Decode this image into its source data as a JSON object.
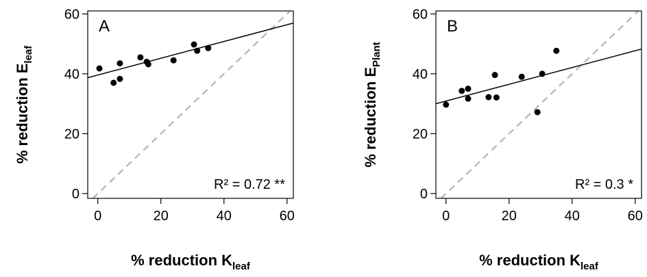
{
  "chart_data": [
    {
      "type": "scatter",
      "annotation": "A",
      "stat_label": "R² = 0.72 **",
      "xlabel": {
        "text": "% reduction K",
        "sub": "leaf"
      },
      "ylabel": {
        "text": "% reduction E",
        "sub": "leaf"
      },
      "x": [
        0.5,
        5,
        7,
        7,
        13.5,
        15.5,
        16,
        24,
        30.5,
        31.5,
        35
      ],
      "series": [
        {
          "color": "#000000",
          "values": [
            41.8,
            37,
            43.5,
            38.3,
            45.5,
            44,
            43.2,
            44.5,
            49.8,
            47.7,
            48.6
          ]
        }
      ],
      "fit": {
        "intercept": 39.6,
        "slope": 0.28,
        "color": "#000000"
      },
      "identity_line": true,
      "xlim": [
        -3.2,
        62
      ],
      "ylim": [
        -1.6,
        61
      ],
      "xticks": [
        0,
        20,
        40,
        60
      ],
      "yticks": [
        0,
        20,
        40,
        60
      ]
    },
    {
      "type": "scatter",
      "annotation": "B",
      "stat_label": "R² = 0.3 *",
      "xlabel": {
        "text": "% reduction K",
        "sub": "leaf"
      },
      "ylabel": {
        "text": "% reduction E",
        "sub": "Plant"
      },
      "x": [
        0,
        5,
        7,
        7,
        13.5,
        15.5,
        16,
        24,
        29,
        30.5,
        35
      ],
      "series": [
        {
          "color": "#000000",
          "values": [
            29.7,
            34.3,
            35,
            31.7,
            32.2,
            39.6,
            32.1,
            39,
            27.2,
            40,
            47.7
          ]
        }
      ],
      "fit": {
        "intercept": 30.9,
        "slope": 0.28,
        "color": "#000000"
      },
      "identity_line": true,
      "xlim": [
        -3.2,
        62
      ],
      "ylim": [
        -1.6,
        61
      ],
      "xticks": [
        0,
        20,
        40,
        60
      ],
      "yticks": [
        0,
        20,
        40,
        60
      ]
    }
  ]
}
